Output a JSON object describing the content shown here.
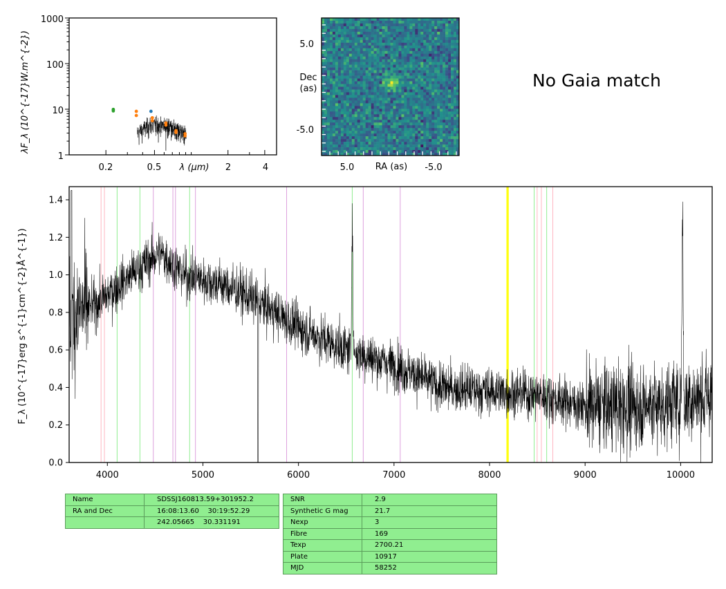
{
  "sed_panel": {
    "ylabel": "λF_λ (10^{-17}W.m^{-2})",
    "xlabel": "λ (μm)",
    "y_tick_labels": [
      "1",
      "10",
      "100",
      "1000"
    ],
    "x_tick_labels": [
      "0.2",
      "0.5",
      "2",
      "4"
    ],
    "colors": {
      "green": "#2ca02c",
      "orange": "#ff7f0e",
      "blue": "#1f77b4"
    }
  },
  "image_panel": {
    "xlabel": "RA (as)",
    "ylabel_line1": "Dec",
    "ylabel_line2": "(as)",
    "x_tick_labels": [
      "5.0",
      "-5.0"
    ],
    "y_tick_labels": [
      "5.0",
      "-5.0"
    ]
  },
  "gaia_message": "No Gaia match",
  "chart_data": [
    {
      "type": "scatter",
      "name": "SED",
      "x_scale": "log",
      "y_scale": "log",
      "xlim": [
        0.1,
        5.0
      ],
      "ylim": [
        1,
        1000
      ],
      "series": [
        {
          "color": "#2ca02c",
          "points": [
            [
              0.23,
              9.9
            ],
            [
              0.23,
              9.2
            ]
          ]
        },
        {
          "color": "#ff7f0e",
          "points": [
            [
              0.355,
              9.0
            ],
            [
              0.355,
              7.3
            ],
            [
              0.48,
              6.5
            ],
            [
              0.48,
              5.6
            ],
            [
              0.62,
              5.0
            ],
            [
              0.62,
              4.5
            ],
            [
              0.75,
              3.4
            ],
            [
              0.75,
              3.1
            ],
            [
              0.89,
              2.9
            ],
            [
              0.89,
              2.6
            ]
          ]
        },
        {
          "color": "#1f77b4",
          "points": [
            [
              0.468,
              9.0
            ]
          ]
        }
      ]
    },
    {
      "type": "heatmap",
      "name": "cutout",
      "xlim": [
        8.0,
        -8.0
      ],
      "ylim": [
        -8.0,
        8.0
      ],
      "colormap": "viridis",
      "source_offset_as": [
        -0.2,
        0.5
      ]
    },
    {
      "type": "line",
      "name": "spectrum",
      "xlabel": "",
      "ylabel": "F_λ (10^{-17}erg s^{-1}cm^{-2}Å^{-1})",
      "xlim": [
        3600,
        10330
      ],
      "ylim": [
        0.0,
        1.47
      ],
      "x_ticks": [
        4000,
        5000,
        6000,
        7000,
        8000,
        9000,
        10000
      ],
      "y_ticks": [
        0.0,
        0.2,
        0.4,
        0.6,
        0.8,
        1.0,
        1.2,
        1.4
      ],
      "continuum_anchors": [
        [
          3600,
          0.78
        ],
        [
          3900,
          0.85
        ],
        [
          4300,
          1.02
        ],
        [
          4550,
          1.12
        ],
        [
          4800,
          1.0
        ],
        [
          5200,
          0.95
        ],
        [
          5500,
          0.88
        ],
        [
          6000,
          0.72
        ],
        [
          6500,
          0.6
        ],
        [
          7000,
          0.52
        ],
        [
          7500,
          0.4
        ],
        [
          8000,
          0.38
        ],
        [
          8500,
          0.36
        ],
        [
          9000,
          0.3
        ],
        [
          9500,
          0.3
        ],
        [
          10000,
          0.32
        ],
        [
          10330,
          0.35
        ]
      ],
      "emission_features": [
        [
          6563,
          1.33
        ],
        [
          10020,
          1.35
        ]
      ],
      "reference_lines": [
        {
          "x": 3934,
          "color": "#ffb6c1"
        },
        {
          "x": 3969,
          "color": "#ffb6c1"
        },
        {
          "x": 4102,
          "color": "#90ee90"
        },
        {
          "x": 4341,
          "color": "#90ee90"
        },
        {
          "x": 4481,
          "color": "#dda0dd"
        },
        {
          "x": 4686,
          "color": "#dda0dd"
        },
        {
          "x": 4713,
          "color": "#dda0dd"
        },
        {
          "x": 4861,
          "color": "#90ee90"
        },
        {
          "x": 4922,
          "color": "#dda0dd"
        },
        {
          "x": 5876,
          "color": "#dda0dd"
        },
        {
          "x": 6563,
          "color": "#90ee90"
        },
        {
          "x": 6678,
          "color": "#dda0dd"
        },
        {
          "x": 7065,
          "color": "#dda0dd"
        },
        {
          "x": 8183,
          "color": "#ffff00"
        },
        {
          "x": 8195,
          "color": "#ffff00"
        },
        {
          "x": 8467,
          "color": "#90ee90"
        },
        {
          "x": 8498,
          "color": "#ffb6c1"
        },
        {
          "x": 8542,
          "color": "#ffb6c1"
        },
        {
          "x": 8598,
          "color": "#90ee90"
        },
        {
          "x": 8662,
          "color": "#ffb6c1"
        }
      ]
    }
  ],
  "info_table_left": [
    {
      "key": "Name",
      "value": "SDSSJ160813.59+301952.2"
    },
    {
      "key": "RA and Dec",
      "value": "16:08:13.60    30:19:52.29"
    },
    {
      "key": "",
      "value": "242.05665    30.331191"
    }
  ],
  "info_table_right": [
    {
      "key": "SNR",
      "value": "2.9"
    },
    {
      "key": "Synthetic G mag",
      "value": "21.7"
    },
    {
      "key": "Nexp",
      "value": "3"
    },
    {
      "key": "Fibre",
      "value": "169"
    },
    {
      "key": "Texp",
      "value": "2700.21"
    },
    {
      "key": "Plate",
      "value": "10917"
    },
    {
      "key": "MJD",
      "value": "58252"
    }
  ]
}
